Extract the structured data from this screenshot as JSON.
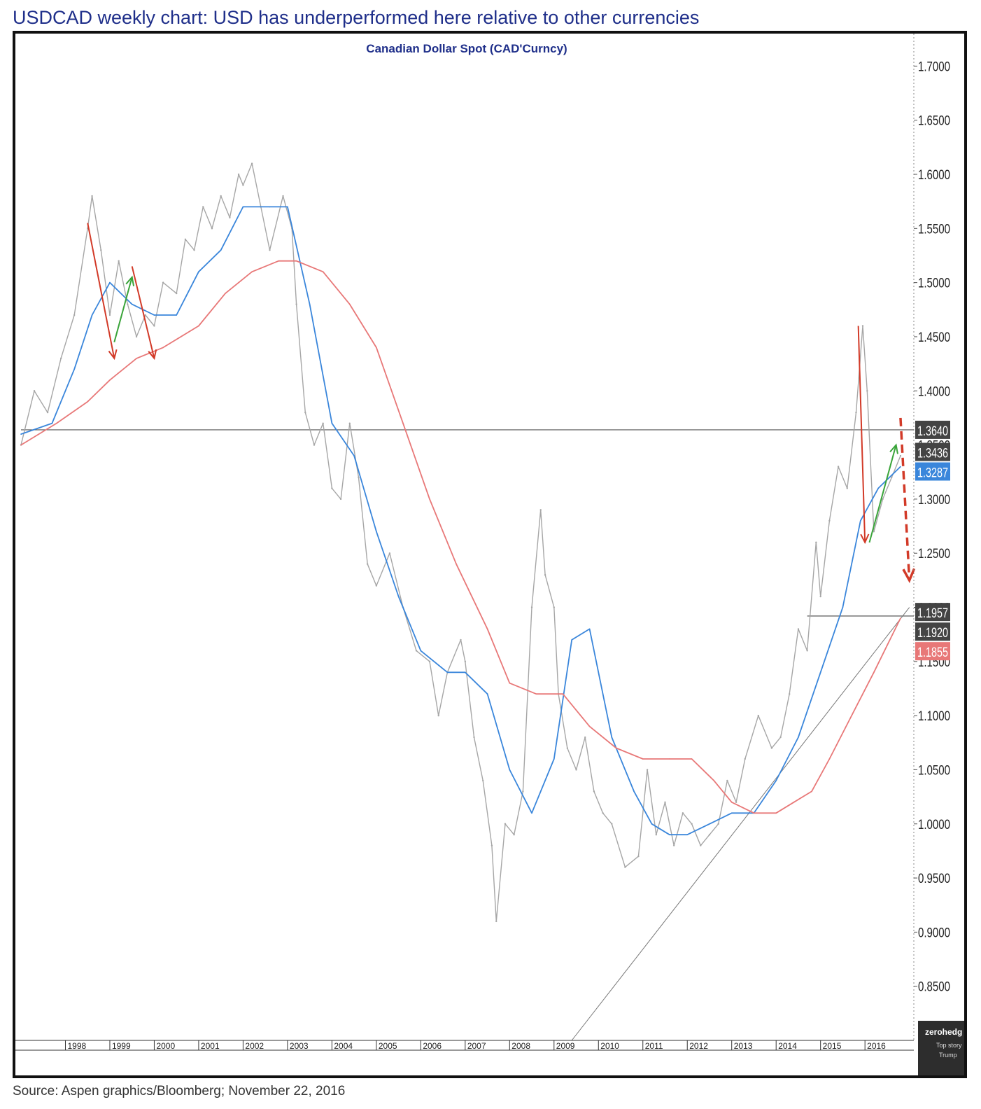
{
  "headline": "USDCAD weekly chart: USD has underperformed here relative to other currencies",
  "source": "Source: Aspen graphics/Bloomberg; November 22, 2016",
  "watermark": {
    "text": "zerohedg",
    "caption_line1": "Top story",
    "caption_line2": "Trump"
  },
  "chart_data": {
    "type": "line",
    "title": "Canadian Dollar Spot (CAD'Curncy)",
    "xlabel": "",
    "ylabel": "",
    "x_ticks": [
      "1998",
      "1999",
      "2000",
      "2001",
      "2002",
      "2003",
      "2004",
      "2005",
      "2006",
      "2007",
      "2008",
      "2009",
      "2010",
      "2011",
      "2012",
      "2013",
      "2014",
      "2015",
      "2016"
    ],
    "y_ticks": [
      "1.7000",
      "1.6500",
      "1.6000",
      "1.5500",
      "1.5000",
      "1.4500",
      "1.4000",
      "1.3500",
      "1.3000",
      "1.2500",
      "1.2000",
      "1.1500",
      "1.1000",
      "1.0500",
      "1.0000",
      "0.9500",
      "0.9000",
      "0.8500"
    ],
    "ylim": [
      0.8,
      1.73
    ],
    "xlim": [
      1997.0,
      2017.1
    ],
    "grid": false,
    "series": [
      {
        "name": "",
        "color": "#a6a6a6",
        "x": [
          1997.0,
          1997.3,
          1997.6,
          1997.9,
          1998.2,
          1998.5,
          1998.6,
          1998.8,
          1999.0,
          1999.2,
          1999.4,
          1999.6,
          1999.8,
          2000.0,
          2000.2,
          2000.5,
          2000.7,
          2000.9,
          2001.1,
          2001.3,
          2001.5,
          2001.7,
          2001.9,
          2002.0,
          2002.2,
          2002.4,
          2002.6,
          2002.9,
          2003.1,
          2003.2,
          2003.4,
          2003.6,
          2003.8,
          2004.0,
          2004.2,
          2004.4,
          2004.6,
          2004.8,
          2005.0,
          2005.3,
          2005.6,
          2005.9,
          2006.2,
          2006.4,
          2006.6,
          2006.9,
          2007.0,
          2007.2,
          2007.4,
          2007.6,
          2007.7,
          2007.9,
          2008.1,
          2008.3,
          2008.5,
          2008.7,
          2008.8,
          2009.0,
          2009.1,
          2009.3,
          2009.5,
          2009.7,
          2009.9,
          2010.1,
          2010.3,
          2010.6,
          2010.9,
          2011.1,
          2011.3,
          2011.5,
          2011.7,
          2011.9,
          2012.1,
          2012.3,
          2012.5,
          2012.7,
          2012.9,
          2013.1,
          2013.3,
          2013.6,
          2013.9,
          2014.1,
          2014.3,
          2014.5,
          2014.7,
          2014.9,
          2015.0,
          2015.2,
          2015.4,
          2015.6,
          2015.8,
          2015.95,
          2016.05,
          2016.2,
          2016.4,
          2016.6,
          2016.8
        ],
        "values": [
          1.35,
          1.4,
          1.38,
          1.43,
          1.47,
          1.55,
          1.58,
          1.53,
          1.47,
          1.52,
          1.48,
          1.45,
          1.47,
          1.46,
          1.5,
          1.49,
          1.54,
          1.53,
          1.57,
          1.55,
          1.58,
          1.56,
          1.6,
          1.59,
          1.61,
          1.57,
          1.53,
          1.58,
          1.55,
          1.48,
          1.38,
          1.35,
          1.37,
          1.31,
          1.3,
          1.37,
          1.32,
          1.24,
          1.22,
          1.25,
          1.2,
          1.16,
          1.15,
          1.1,
          1.14,
          1.17,
          1.15,
          1.08,
          1.04,
          0.98,
          0.91,
          1.0,
          0.99,
          1.03,
          1.2,
          1.29,
          1.23,
          1.2,
          1.12,
          1.07,
          1.05,
          1.08,
          1.03,
          1.01,
          1.0,
          0.96,
          0.97,
          1.05,
          0.99,
          1.02,
          0.98,
          1.01,
          1.0,
          0.98,
          0.99,
          1.0,
          1.04,
          1.02,
          1.06,
          1.1,
          1.07,
          1.08,
          1.12,
          1.18,
          1.16,
          1.26,
          1.21,
          1.28,
          1.33,
          1.31,
          1.38,
          1.46,
          1.4,
          1.27,
          1.3,
          1.32,
          1.34
        ]
      },
      {
        "name": "",
        "color": "#3a86db",
        "x": [
          1997.0,
          1997.7,
          1998.2,
          1998.6,
          1999.0,
          1999.5,
          2000.0,
          2000.5,
          2001.0,
          2001.5,
          2002.0,
          2002.6,
          2003.0,
          2003.5,
          2004.0,
          2004.5,
          2005.0,
          2005.5,
          2006.0,
          2006.6,
          2007.0,
          2007.5,
          2008.0,
          2008.5,
          2009.0,
          2009.4,
          2009.8,
          2010.3,
          2010.8,
          2011.2,
          2011.6,
          2012.0,
          2012.5,
          2013.0,
          2013.5,
          2014.0,
          2014.5,
          2015.0,
          2015.5,
          2015.9,
          2016.3,
          2016.8
        ],
        "values": [
          1.36,
          1.37,
          1.42,
          1.47,
          1.5,
          1.48,
          1.47,
          1.47,
          1.51,
          1.53,
          1.57,
          1.57,
          1.57,
          1.48,
          1.37,
          1.34,
          1.27,
          1.21,
          1.16,
          1.14,
          1.14,
          1.12,
          1.05,
          1.01,
          1.06,
          1.17,
          1.18,
          1.08,
          1.03,
          1.0,
          0.99,
          0.99,
          1.0,
          1.01,
          1.01,
          1.04,
          1.08,
          1.14,
          1.2,
          1.28,
          1.31,
          1.33
        ]
      },
      {
        "name": "",
        "color": "#e87878",
        "x": [
          1997.0,
          1997.8,
          1998.5,
          1999.0,
          1999.6,
          2000.2,
          2001.0,
          2001.6,
          2002.2,
          2002.8,
          2003.2,
          2003.8,
          2004.4,
          2005.0,
          2005.6,
          2006.2,
          2006.8,
          2007.5,
          2008.0,
          2008.6,
          2009.2,
          2009.8,
          2010.4,
          2011.0,
          2011.6,
          2012.1,
          2012.6,
          2013.0,
          2013.5,
          2014.0,
          2014.4,
          2014.8,
          2015.2,
          2015.7,
          2016.2,
          2016.8
        ],
        "values": [
          1.35,
          1.37,
          1.39,
          1.41,
          1.43,
          1.44,
          1.46,
          1.49,
          1.51,
          1.52,
          1.52,
          1.51,
          1.48,
          1.44,
          1.37,
          1.3,
          1.24,
          1.18,
          1.13,
          1.12,
          1.12,
          1.09,
          1.07,
          1.06,
          1.06,
          1.06,
          1.04,
          1.02,
          1.01,
          1.01,
          1.02,
          1.03,
          1.06,
          1.1,
          1.14,
          1.19
        ]
      }
    ],
    "reference_lines": [
      {
        "type": "horizontal",
        "value": 1.364,
        "x_from": 1997.0,
        "x_to": 2017.1,
        "color": "#555555"
      },
      {
        "type": "horizontal",
        "value": 1.192,
        "x_from": 2014.7,
        "x_to": 2017.1,
        "color": "#555555"
      },
      {
        "type": "trend",
        "x": [
          2009.4,
          2017.0
        ],
        "values": [
          0.8,
          1.2
        ],
        "color": "#777777"
      }
    ],
    "arrows": [
      {
        "color": "#d23a28",
        "x": [
          1998.5,
          1999.1
        ],
        "values": [
          1.555,
          1.43
        ],
        "dashed": false
      },
      {
        "color": "#d23a28",
        "x": [
          1999.5,
          2000.0
        ],
        "values": [
          1.515,
          1.43
        ],
        "dashed": false
      },
      {
        "color": "#3aa43a",
        "x": [
          1999.1,
          1999.5
        ],
        "values": [
          1.445,
          1.505
        ],
        "dashed": false
      },
      {
        "color": "#d23a28",
        "x": [
          2015.85,
          2016.0
        ],
        "values": [
          1.46,
          1.26
        ],
        "dashed": false
      },
      {
        "color": "#3aa43a",
        "x": [
          2016.1,
          2016.7
        ],
        "values": [
          1.26,
          1.35
        ],
        "dashed": false
      },
      {
        "color": "#d23a28",
        "x": [
          2016.8,
          2017.0
        ],
        "values": [
          1.375,
          1.225
        ],
        "dashed": true
      }
    ],
    "value_tags": [
      {
        "label": "1.3640",
        "value": 1.364,
        "bg": "#444444",
        "fg": "#ffffff"
      },
      {
        "label": "1.3436",
        "value": 1.3436,
        "bg": "#444444",
        "fg": "#ffffff"
      },
      {
        "label": "1.3287",
        "value": 1.3287,
        "bg": "#3a86db",
        "fg": "#ffffff"
      },
      {
        "label": "1.1957",
        "value": 1.1957,
        "bg": "#444444",
        "fg": "#ffffff"
      },
      {
        "label": "1.1920",
        "value": 1.192,
        "bg": "#444444",
        "fg": "#ffffff"
      },
      {
        "label": "1.1855",
        "value": 1.1855,
        "bg": "#e87878",
        "fg": "#ffffff"
      }
    ]
  }
}
